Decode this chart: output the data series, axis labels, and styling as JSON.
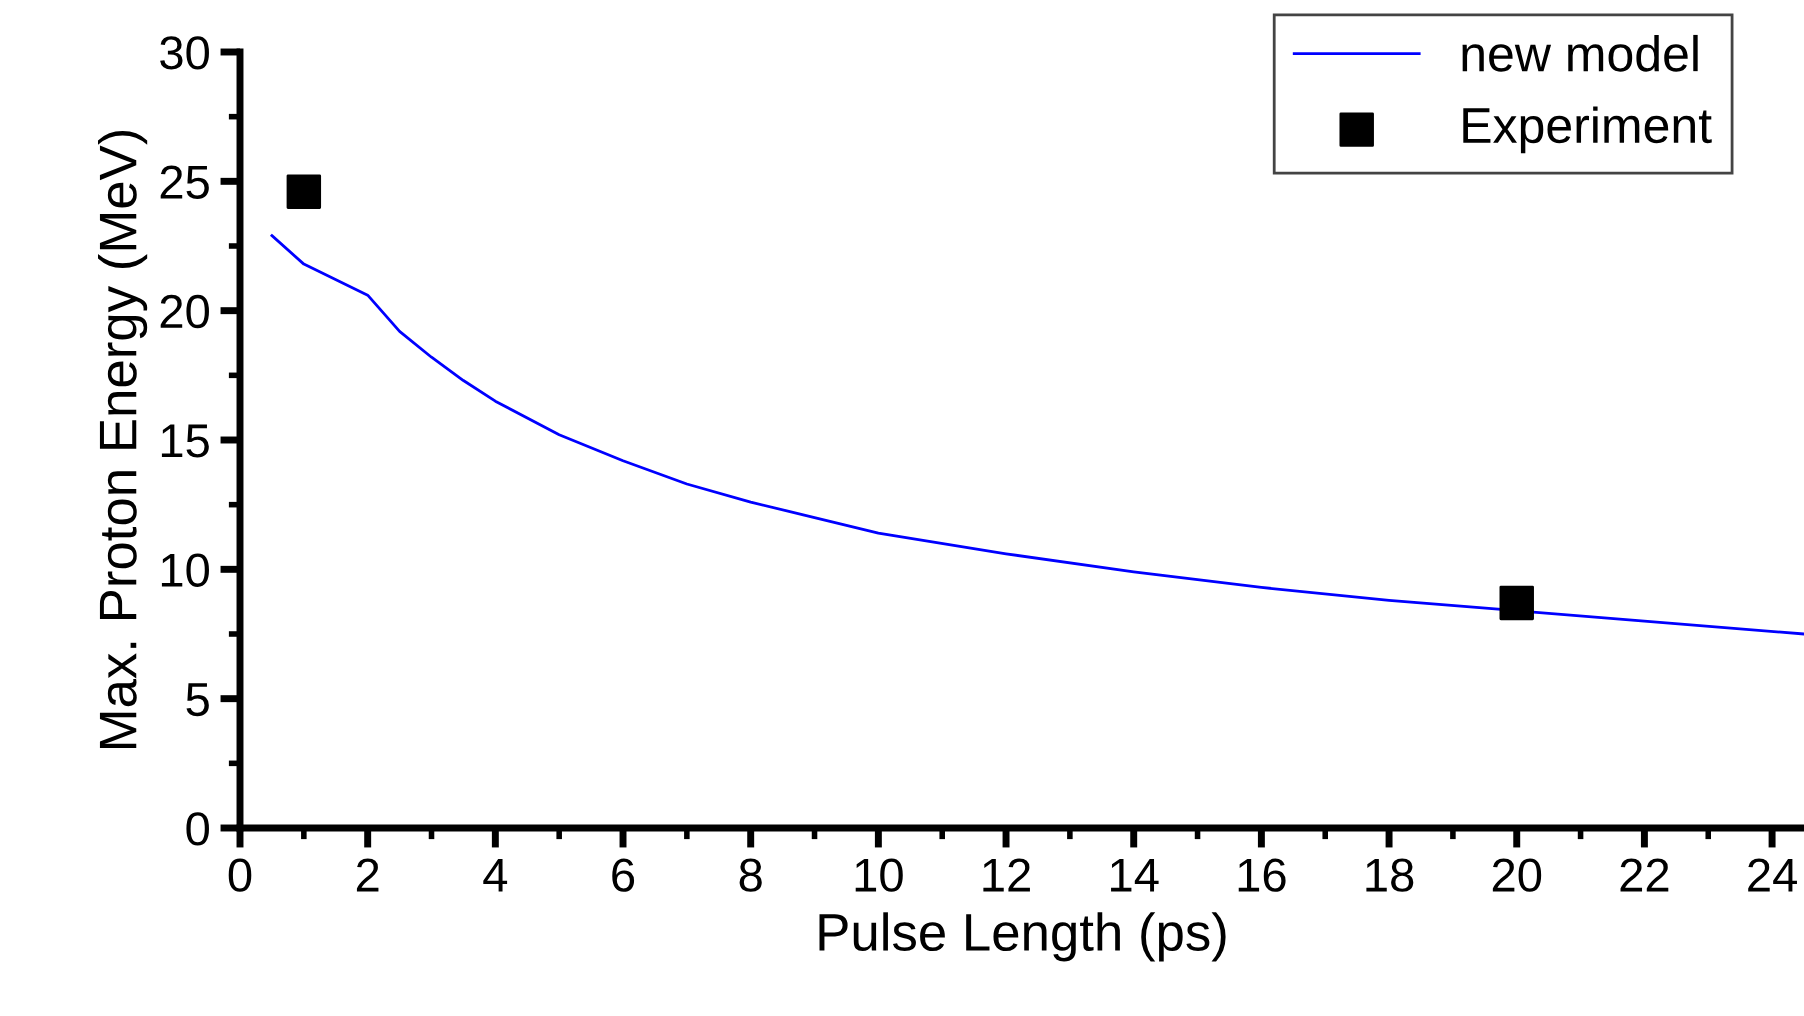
{
  "chart_data": {
    "type": "line",
    "xlabel": "Pulse Length (ps)",
    "ylabel": "Max. Proton Energy (MeV)",
    "xlim": [
      0,
      24.5
    ],
    "xticks": [
      0,
      2,
      4,
      6,
      8,
      10,
      12,
      14,
      16,
      18,
      20,
      22,
      24
    ],
    "ylim": [
      0,
      30
    ],
    "yticks": [
      0,
      5,
      10,
      15,
      20,
      25,
      30
    ],
    "grid": false,
    "legend": "top right",
    "series": [
      {
        "name": "new model",
        "color": "#0000ff",
        "marker": "none",
        "line_style": "solid",
        "x": [
          0.5,
          1,
          2,
          2.5,
          3,
          3.5,
          4,
          5,
          6,
          7,
          8,
          9,
          10,
          12,
          14,
          16,
          18,
          20,
          22,
          24.5
        ],
        "values": [
          22.9,
          21.8,
          20.6,
          19.2,
          18.2,
          17.3,
          16.5,
          15.2,
          14.2,
          13.3,
          12.6,
          12.0,
          11.4,
          10.6,
          9.9,
          9.3,
          8.8,
          8.4,
          8.0,
          7.5
        ]
      },
      {
        "name": "Experiment",
        "type": "scatter",
        "color": "#000000",
        "marker": "square",
        "x": [
          1,
          20
        ],
        "values": [
          24.6,
          8.7
        ]
      }
    ]
  }
}
